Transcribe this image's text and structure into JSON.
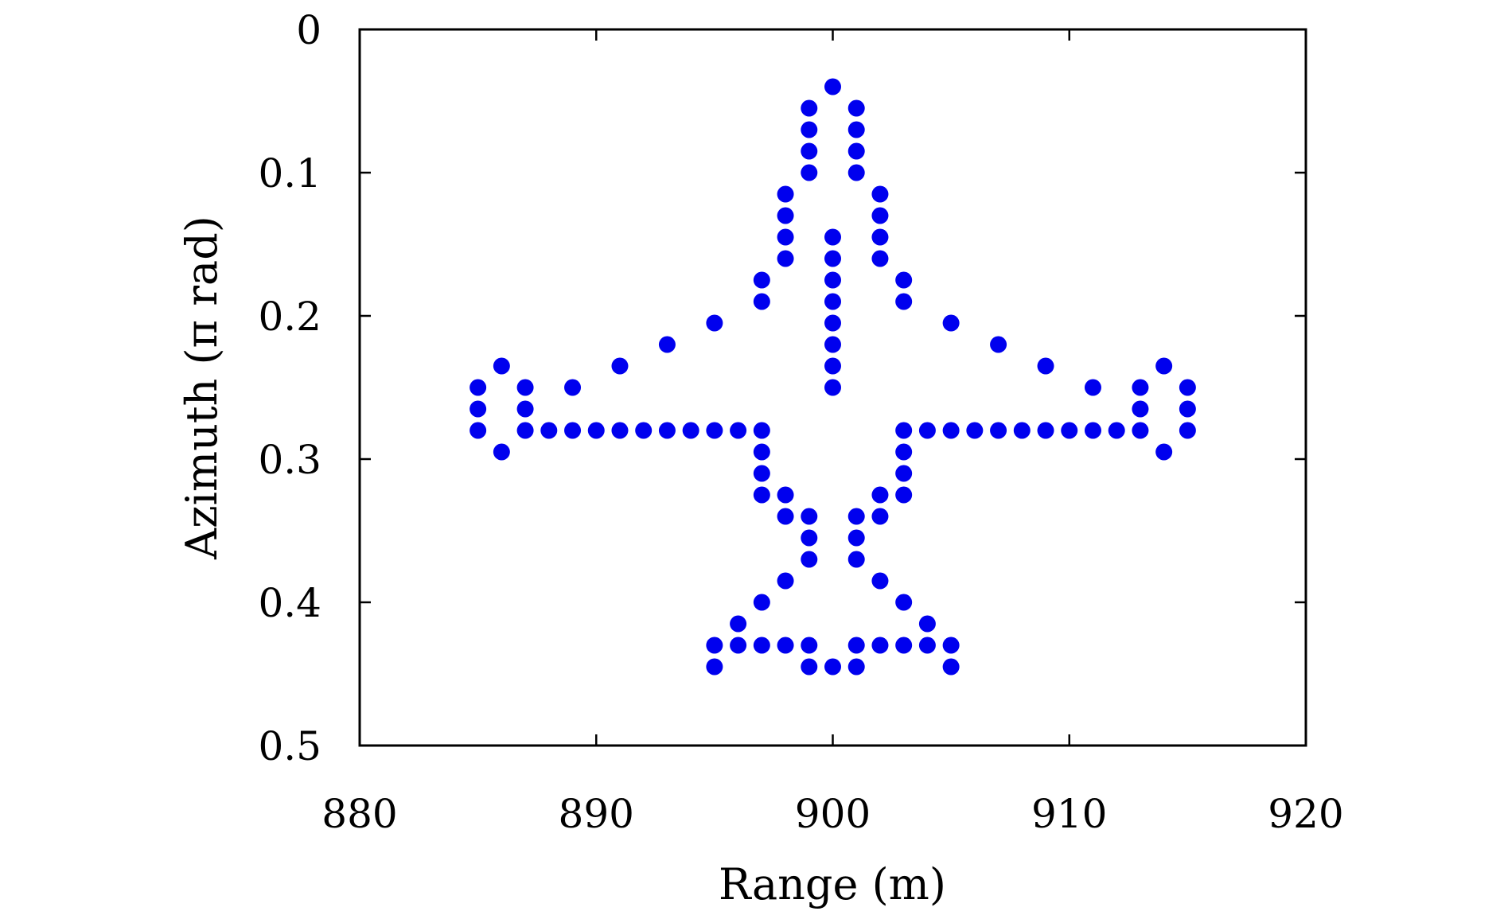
{
  "chart_data": {
    "type": "scatter",
    "title": "",
    "xlabel": "Range (m)",
    "ylabel": "Azimuth (π rad)",
    "xlim": [
      880,
      920
    ],
    "ylim": [
      0,
      0.5
    ],
    "y_inverted": true,
    "grid": false,
    "legend": "none",
    "marker_color": "#0000ee",
    "x_ticks": [
      880,
      890,
      900,
      910,
      920
    ],
    "x_tick_labels": [
      "880",
      "890",
      "900",
      "910",
      "920"
    ],
    "y_ticks": [
      0,
      0.1,
      0.2,
      0.3,
      0.4,
      0.5
    ],
    "y_tick_labels": [
      "0",
      "0.1",
      "0.2",
      "0.3",
      "0.4",
      "0.5"
    ],
    "points": [
      [
        900,
        0.04
      ],
      [
        899,
        0.055
      ],
      [
        901,
        0.055
      ],
      [
        899,
        0.07
      ],
      [
        901,
        0.07
      ],
      [
        899,
        0.085
      ],
      [
        901,
        0.085
      ],
      [
        899,
        0.1
      ],
      [
        901,
        0.1
      ],
      [
        898,
        0.115
      ],
      [
        902,
        0.115
      ],
      [
        898,
        0.13
      ],
      [
        902,
        0.13
      ],
      [
        898,
        0.145
      ],
      [
        900,
        0.145
      ],
      [
        902,
        0.145
      ],
      [
        898,
        0.16
      ],
      [
        900,
        0.16
      ],
      [
        902,
        0.16
      ],
      [
        897,
        0.175
      ],
      [
        900,
        0.175
      ],
      [
        903,
        0.175
      ],
      [
        897,
        0.19
      ],
      [
        900,
        0.19
      ],
      [
        903,
        0.19
      ],
      [
        895,
        0.205
      ],
      [
        900,
        0.205
      ],
      [
        905,
        0.205
      ],
      [
        893,
        0.22
      ],
      [
        900,
        0.22
      ],
      [
        907,
        0.22
      ],
      [
        886,
        0.235
      ],
      [
        891,
        0.235
      ],
      [
        900,
        0.235
      ],
      [
        909,
        0.235
      ],
      [
        914,
        0.235
      ],
      [
        885,
        0.25
      ],
      [
        887,
        0.25
      ],
      [
        889,
        0.25
      ],
      [
        900,
        0.25
      ],
      [
        911,
        0.25
      ],
      [
        913,
        0.25
      ],
      [
        915,
        0.25
      ],
      [
        885,
        0.265
      ],
      [
        887,
        0.265
      ],
      [
        913,
        0.265
      ],
      [
        915,
        0.265
      ],
      [
        885,
        0.28
      ],
      [
        887,
        0.28
      ],
      [
        888,
        0.28
      ],
      [
        889,
        0.28
      ],
      [
        890,
        0.28
      ],
      [
        891,
        0.28
      ],
      [
        892,
        0.28
      ],
      [
        893,
        0.28
      ],
      [
        894,
        0.28
      ],
      [
        895,
        0.28
      ],
      [
        896,
        0.28
      ],
      [
        897,
        0.28
      ],
      [
        903,
        0.28
      ],
      [
        904,
        0.28
      ],
      [
        905,
        0.28
      ],
      [
        906,
        0.28
      ],
      [
        907,
        0.28
      ],
      [
        908,
        0.28
      ],
      [
        909,
        0.28
      ],
      [
        910,
        0.28
      ],
      [
        911,
        0.28
      ],
      [
        912,
        0.28
      ],
      [
        913,
        0.28
      ],
      [
        915,
        0.28
      ],
      [
        886,
        0.295
      ],
      [
        897,
        0.295
      ],
      [
        903,
        0.295
      ],
      [
        914,
        0.295
      ],
      [
        897,
        0.31
      ],
      [
        903,
        0.31
      ],
      [
        897,
        0.325
      ],
      [
        898,
        0.325
      ],
      [
        902,
        0.325
      ],
      [
        903,
        0.325
      ],
      [
        898,
        0.34
      ],
      [
        899,
        0.34
      ],
      [
        901,
        0.34
      ],
      [
        902,
        0.34
      ],
      [
        899,
        0.355
      ],
      [
        901,
        0.355
      ],
      [
        899,
        0.37
      ],
      [
        901,
        0.37
      ],
      [
        898,
        0.385
      ],
      [
        902,
        0.385
      ],
      [
        897,
        0.4
      ],
      [
        903,
        0.4
      ],
      [
        896,
        0.415
      ],
      [
        904,
        0.415
      ],
      [
        895,
        0.43
      ],
      [
        896,
        0.43
      ],
      [
        897,
        0.43
      ],
      [
        898,
        0.43
      ],
      [
        899,
        0.43
      ],
      [
        901,
        0.43
      ],
      [
        902,
        0.43
      ],
      [
        903,
        0.43
      ],
      [
        904,
        0.43
      ],
      [
        905,
        0.43
      ],
      [
        895,
        0.445
      ],
      [
        899,
        0.445
      ],
      [
        900,
        0.445
      ],
      [
        901,
        0.445
      ],
      [
        905,
        0.445
      ]
    ]
  }
}
